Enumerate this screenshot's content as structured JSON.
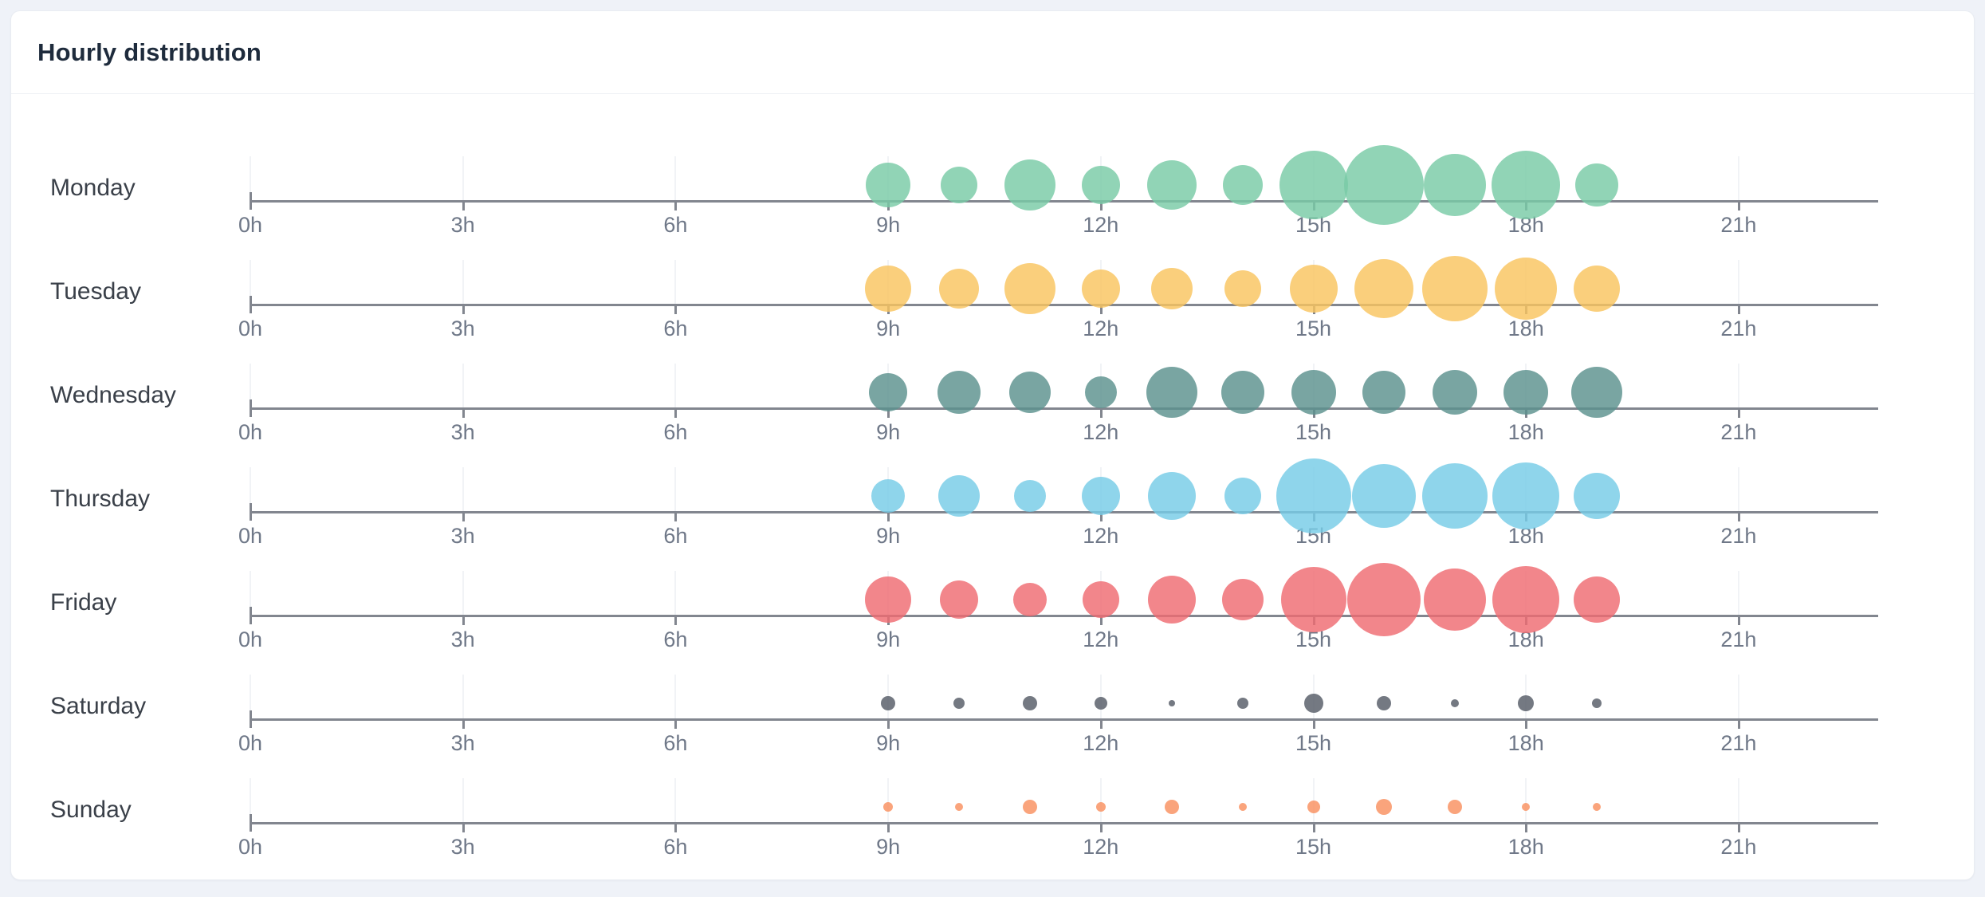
{
  "page": {
    "background_color": "#EFF2F8"
  },
  "card": {
    "title": "Hourly distribution",
    "background_color": "#FFFFFF",
    "title_color": "#1E2B3C"
  },
  "chart_data": {
    "type": "scatter",
    "subtype": "bubble-punchcard-by-weekday",
    "title": "Hourly distribution",
    "x_axis": {
      "unit": "hour of day",
      "range": [
        0,
        23
      ],
      "tick_hours": [
        0,
        3,
        6,
        9,
        12,
        15,
        18,
        21
      ],
      "tick_labels": [
        "0h",
        "3h",
        "6h",
        "9h",
        "12h",
        "15h",
        "18h",
        "21h"
      ]
    },
    "bubble_hours": [
      9,
      10,
      11,
      12,
      13,
      14,
      15,
      16,
      17,
      18,
      19
    ],
    "size_encoding": "bubble radius in px, proportional to activity; no numeric value labels are shown in the chart",
    "rows": [
      {
        "label": "Monday",
        "color": "#79CBA6",
        "sizes": [
          28,
          23,
          32,
          24,
          31,
          25,
          43,
          50,
          39,
          43,
          27
        ]
      },
      {
        "label": "Tuesday",
        "color": "#F9C45F",
        "sizes": [
          29,
          25,
          32,
          24,
          26,
          23,
          30,
          37,
          41,
          39,
          29
        ]
      },
      {
        "label": "Wednesday",
        "color": "#5B918E",
        "sizes": [
          24,
          27,
          26,
          20,
          32,
          27,
          28,
          27,
          28,
          28,
          32
        ]
      },
      {
        "label": "Thursday",
        "color": "#76CCE6",
        "sizes": [
          21,
          26,
          20,
          24,
          30,
          23,
          47,
          40,
          41,
          42,
          29
        ]
      },
      {
        "label": "Friday",
        "color": "#EF6B71",
        "sizes": [
          29,
          24,
          21,
          23,
          30,
          26,
          41,
          46,
          39,
          42,
          29
        ]
      },
      {
        "label": "Saturday",
        "color": "#565B67",
        "sizes": [
          9,
          7,
          9,
          8,
          4,
          7,
          12,
          9,
          5,
          10,
          6
        ]
      },
      {
        "label": "Sunday",
        "color": "#F9905F",
        "sizes": [
          6,
          5,
          9,
          6,
          9,
          5,
          8,
          10,
          9,
          5,
          5
        ]
      }
    ],
    "legend": "none",
    "grid": "faint vertical lines above axis at each 3h tick"
  },
  "colors": {
    "axis_line": "#82868F",
    "tick_label": "#6F7888",
    "day_label": "#3A4049",
    "grid_line": "#F1F3F6",
    "header_divider": "#EEF0F4",
    "card_border": "#E9ECF2"
  }
}
